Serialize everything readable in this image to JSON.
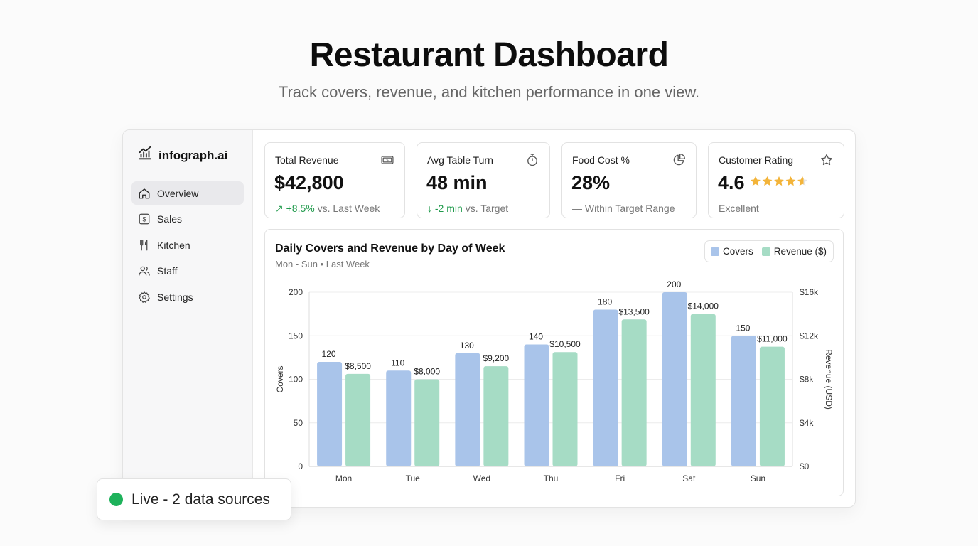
{
  "page": {
    "title": "Restaurant Dashboard",
    "subtitle": "Track covers, revenue, and kitchen performance in one view."
  },
  "brand": {
    "name": "infograph.ai",
    "icon": "chart-logo-icon"
  },
  "sidebar": {
    "items": [
      {
        "label": "Overview",
        "icon": "home-icon",
        "active": true
      },
      {
        "label": "Sales",
        "icon": "dollar-icon",
        "active": false
      },
      {
        "label": "Kitchen",
        "icon": "utensils-icon",
        "active": false
      },
      {
        "label": "Staff",
        "icon": "users-icon",
        "active": false
      },
      {
        "label": "Settings",
        "icon": "gear-icon",
        "active": false
      }
    ]
  },
  "kpis": [
    {
      "label": "Total Revenue",
      "value": "$42,800",
      "delta": "↗ +8.5%",
      "note": "vs. Last Week",
      "icon": "banknote-icon"
    },
    {
      "label": "Avg Table Turn",
      "value": "48 min",
      "delta": "↓ -2 min",
      "note": "vs. Target",
      "icon": "stopwatch-icon"
    },
    {
      "label": "Food Cost %",
      "value": "28%",
      "note": "— Within Target Range",
      "icon": "pie-icon"
    },
    {
      "label": "Customer Rating",
      "value": "4.6",
      "stars": 4.6,
      "note": "Excellent",
      "icon": "star-icon"
    }
  ],
  "colors": {
    "covers": "#a9c4ea",
    "revenue": "#a6dcc5",
    "positive": "#1f9a4b",
    "live": "#1eb25b",
    "star": "#f3b43a"
  },
  "chart_data": {
    "type": "bar",
    "title": "Daily Covers and Revenue by Day of Week",
    "subtitle": "Mon - Sun • Last Week",
    "categories": [
      "Mon",
      "Tue",
      "Wed",
      "Thu",
      "Fri",
      "Sat",
      "Sun"
    ],
    "series": [
      {
        "name": "Covers",
        "axis": "left",
        "values": [
          120,
          110,
          130,
          140,
          180,
          200,
          150
        ],
        "labels": [
          "120",
          "110",
          "130",
          "140",
          "180",
          "200",
          "150"
        ]
      },
      {
        "name": "Revenue ($)",
        "axis": "right",
        "values": [
          8500,
          8000,
          9200,
          10500,
          13500,
          14000,
          11000
        ],
        "labels": [
          "$8,500",
          "$8,000",
          "$9,200",
          "$10,500",
          "$13,500",
          "$14,000",
          "$11,000"
        ]
      }
    ],
    "ylabel": "Covers",
    "ylabel_right": "Revenue (USD)",
    "ylim": [
      0,
      200
    ],
    "ylim_right": [
      0,
      16000
    ],
    "yticks": [
      "0",
      "50",
      "100",
      "150",
      "200"
    ],
    "yticks_right": [
      "$0",
      "$4k",
      "$8k",
      "$12k",
      "$16k"
    ],
    "grid": true,
    "legend": "top-right"
  },
  "status": {
    "label": "Live - 2 data sources"
  }
}
